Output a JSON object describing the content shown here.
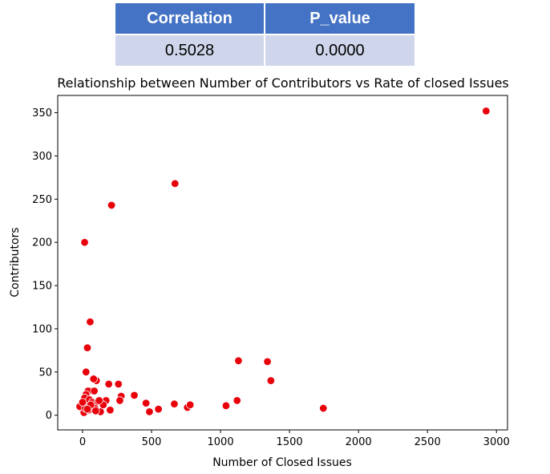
{
  "table": {
    "headers": [
      "Correlation",
      "P_value"
    ],
    "values": [
      "0.5028",
      "0.0000"
    ],
    "header_color": "#4472c4",
    "row_color": "#cfd5ea"
  },
  "chart_data": {
    "type": "scatter",
    "title": "Relationship between Number of Contributors vs Rate of closed Issues",
    "xlabel": "Number of Closed Issues",
    "ylabel": "Contributors",
    "xlim": [
      -180,
      3080
    ],
    "ylim": [
      -17,
      370
    ],
    "xticks": [
      0,
      500,
      1000,
      1500,
      2000,
      2500,
      3000
    ],
    "yticks": [
      0,
      50,
      100,
      150,
      200,
      250,
      300,
      350
    ],
    "grid": false,
    "marker_color": "#e8000b",
    "x": [
      2925,
      670,
      210,
      15,
      55,
      35,
      25,
      1130,
      1340,
      1365,
      1120,
      1040,
      1745,
      760,
      780,
      665,
      550,
      485,
      460,
      375,
      280,
      270,
      260,
      190,
      170,
      100,
      80,
      60,
      40,
      25,
      15,
      5,
      -20,
      10,
      30,
      50,
      70,
      90,
      110,
      130,
      150,
      200,
      20,
      45,
      85,
      120,
      0,
      60,
      95,
      35
    ],
    "y": [
      352,
      268,
      243,
      200,
      108,
      78,
      50,
      63,
      62,
      40,
      17,
      11,
      8,
      9,
      12,
      13,
      7,
      4,
      14,
      23,
      22,
      17,
      36,
      36,
      17,
      40,
      42,
      28,
      28,
      24,
      20,
      5,
      10,
      3,
      12,
      18,
      15,
      8,
      16,
      4,
      12,
      6,
      8,
      6,
      28,
      17,
      15,
      12,
      5,
      7
    ]
  }
}
